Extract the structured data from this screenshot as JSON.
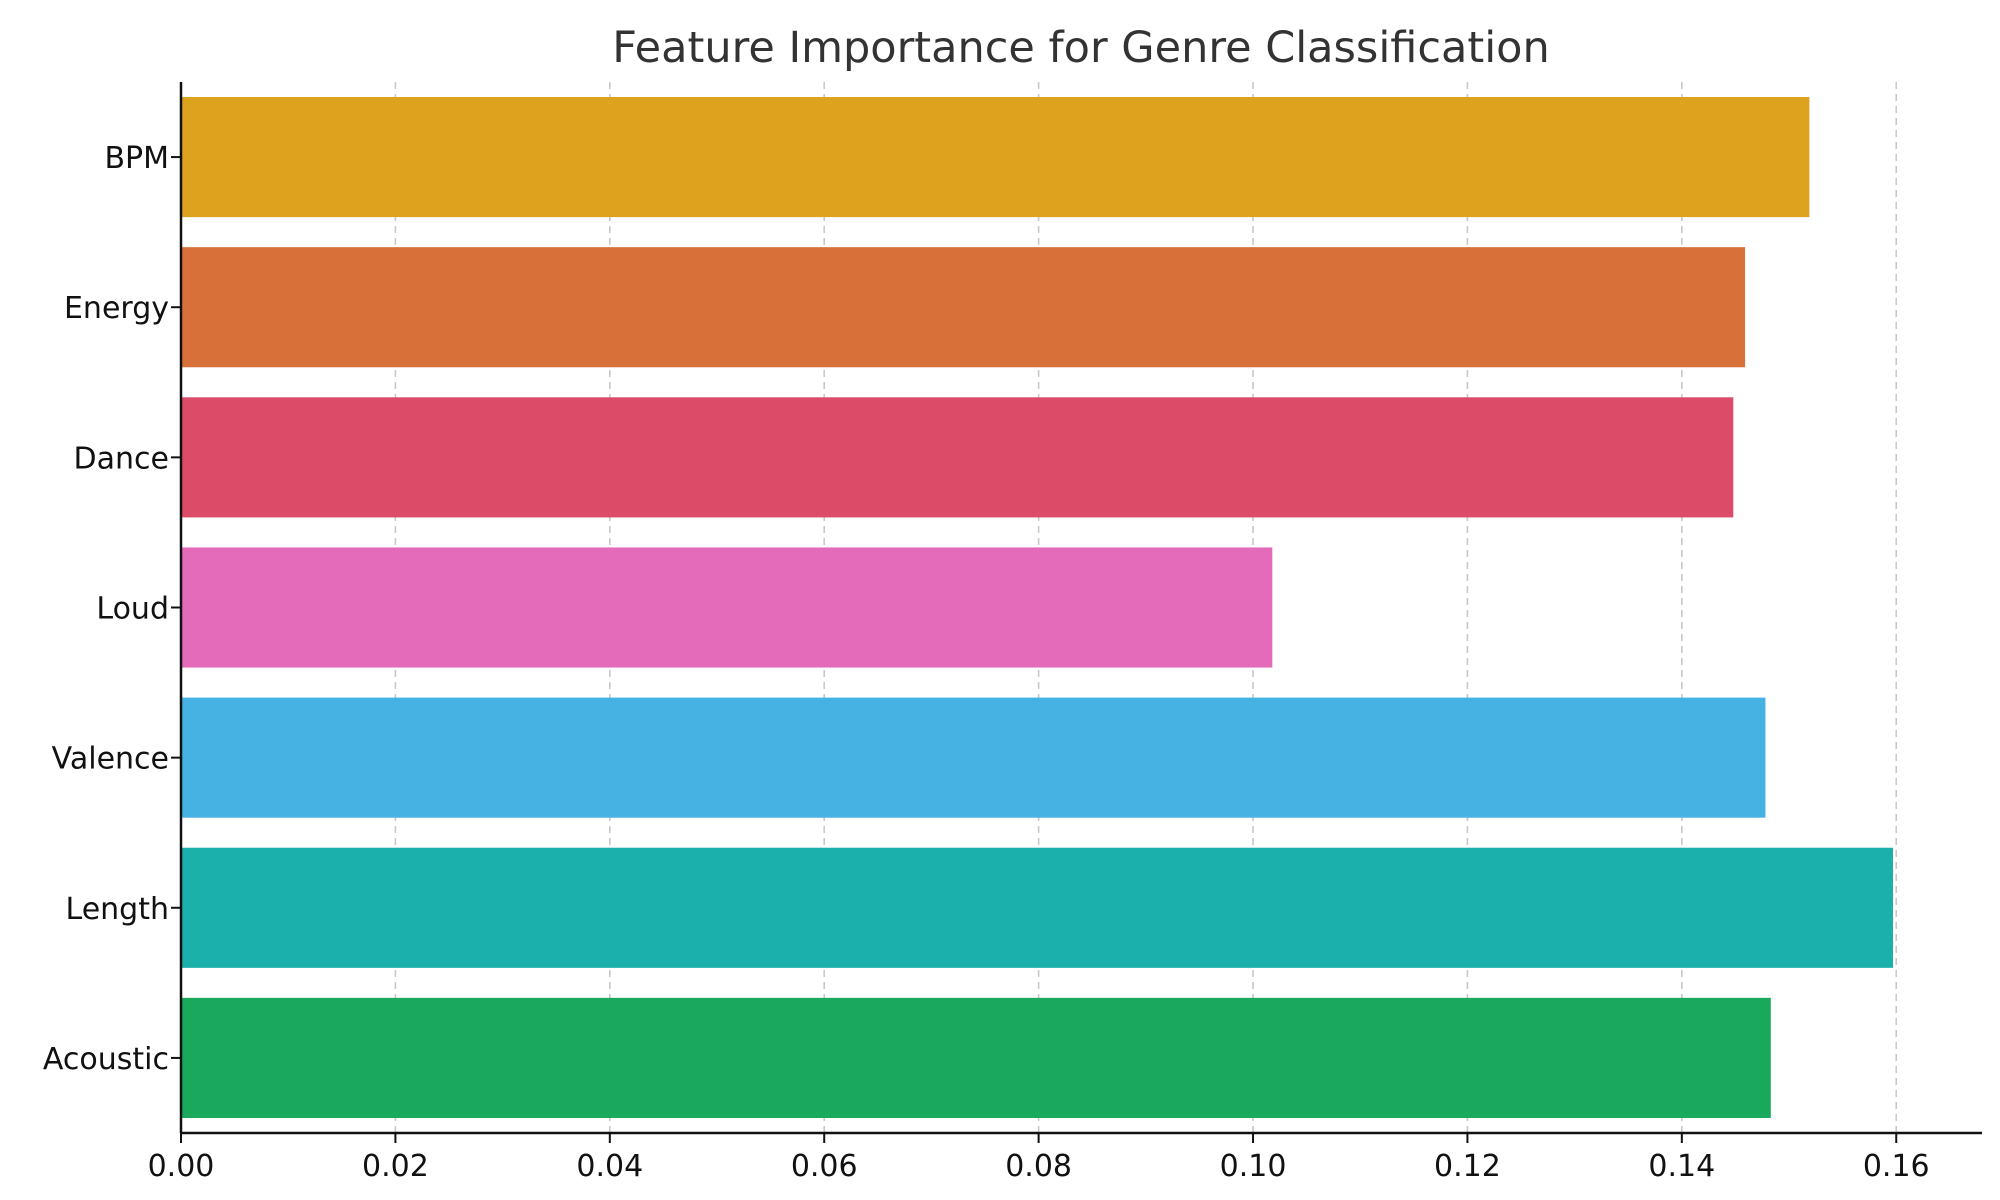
{
  "chart_data": {
    "type": "bar",
    "orientation": "horizontal",
    "title": "Feature Importance for Genre Classification",
    "xlabel": "",
    "ylabel": "",
    "categories": [
      "BPM",
      "Energy",
      "Dance",
      "Loud",
      "Valence",
      "Length",
      "Acoustic"
    ],
    "values": [
      0.1519,
      0.1459,
      0.1448,
      0.1018,
      0.1478,
      0.1597,
      0.1483
    ],
    "colors": [
      "#DDA31F",
      "#D8703A",
      "#DC4B68",
      "#E36BB9",
      "#46B2E3",
      "#1BB1AA",
      "#1AA85C"
    ],
    "xlim": [
      0,
      0.168
    ],
    "xticks": [
      0.0,
      0.02,
      0.04,
      0.06,
      0.08,
      0.1,
      0.12,
      0.14,
      0.16
    ],
    "xtick_labels": [
      "0.00",
      "0.02",
      "0.04",
      "0.06",
      "0.08",
      "0.10",
      "0.12",
      "0.14",
      "0.16"
    ],
    "grid": {
      "x": true,
      "y": false,
      "style": "dashed"
    }
  }
}
